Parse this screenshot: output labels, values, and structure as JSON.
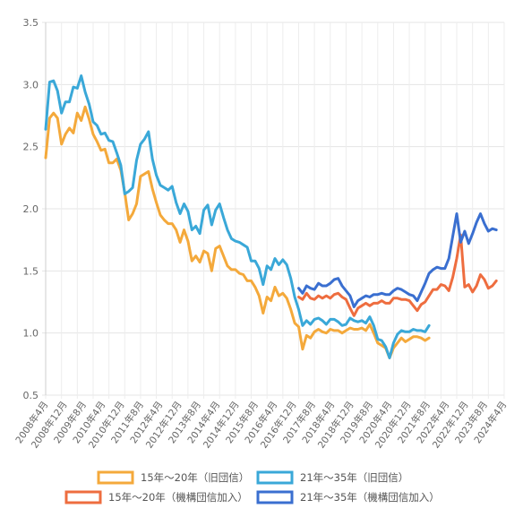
{
  "chart_data": {
    "type": "line",
    "x_start": "2008-04",
    "y_ticks": [
      "0.5",
      "1.0",
      "1.5",
      "2.0",
      "2.5",
      "3.0",
      "3.5"
    ],
    "ylim": [
      0.5,
      3.5
    ],
    "x_tick_labels": [
      "2008年4月",
      "2008年12月",
      "2009年8月",
      "2010年4月",
      "2010年12月",
      "2011年8月",
      "2012年4月",
      "2012年12月",
      "2013年8月",
      "2014年4月",
      "2014年12月",
      "2015年8月",
      "2016年4月",
      "2016年12月",
      "2017年8月",
      "2018年4月",
      "2018年12月",
      "2019年8月",
      "2020年4月",
      "2020年12月",
      "2021年8月",
      "2022年4月",
      "2022年12月",
      "2023年8月",
      "2024年4月"
    ],
    "grid": true,
    "legend_position": "bottom",
    "series": [
      {
        "name": "15年～20年（旧団信）",
        "color": "#f4a93b",
        "points": [
          [
            0,
            2.41
          ],
          [
            1,
            2.73
          ],
          [
            2,
            2.77
          ],
          [
            3,
            2.73
          ],
          [
            4,
            2.52
          ],
          [
            5,
            2.6
          ],
          [
            6,
            2.65
          ],
          [
            7,
            2.61
          ],
          [
            8,
            2.77
          ],
          [
            9,
            2.71
          ],
          [
            10,
            2.82
          ],
          [
            11,
            2.72
          ],
          [
            12,
            2.6
          ],
          [
            13,
            2.54
          ],
          [
            14,
            2.47
          ],
          [
            15,
            2.48
          ],
          [
            16,
            2.37
          ],
          [
            17,
            2.37
          ],
          [
            18,
            2.4
          ],
          [
            19,
            2.31
          ],
          [
            20,
            2.13
          ],
          [
            21,
            1.91
          ],
          [
            22,
            1.96
          ],
          [
            23,
            2.04
          ],
          [
            24,
            2.26
          ],
          [
            25,
            2.28
          ],
          [
            26,
            2.3
          ],
          [
            27,
            2.16
          ],
          [
            28,
            2.05
          ],
          [
            29,
            1.95
          ],
          [
            30,
            1.91
          ],
          [
            31,
            1.88
          ],
          [
            32,
            1.88
          ],
          [
            33,
            1.83
          ],
          [
            34,
            1.73
          ],
          [
            35,
            1.83
          ],
          [
            36,
            1.74
          ],
          [
            37,
            1.58
          ],
          [
            38,
            1.62
          ],
          [
            39,
            1.57
          ],
          [
            40,
            1.66
          ],
          [
            41,
            1.64
          ],
          [
            42,
            1.5
          ],
          [
            43,
            1.68
          ],
          [
            44,
            1.7
          ],
          [
            45,
            1.62
          ],
          [
            46,
            1.54
          ],
          [
            47,
            1.51
          ],
          [
            48,
            1.51
          ],
          [
            49,
            1.48
          ],
          [
            50,
            1.47
          ],
          [
            51,
            1.42
          ],
          [
            52,
            1.42
          ],
          [
            53,
            1.37
          ],
          [
            54,
            1.3
          ],
          [
            55,
            1.16
          ],
          [
            56,
            1.29
          ],
          [
            57,
            1.26
          ],
          [
            58,
            1.37
          ],
          [
            59,
            1.3
          ],
          [
            60,
            1.32
          ],
          [
            61,
            1.28
          ],
          [
            62,
            1.19
          ],
          [
            63,
            1.08
          ],
          [
            64,
            1.05
          ],
          [
            65,
            0.87
          ],
          [
            66,
            0.98
          ],
          [
            67,
            0.96
          ],
          [
            68,
            1.01
          ],
          [
            69,
            1.03
          ],
          [
            70,
            1.01
          ],
          [
            71,
            1.0
          ],
          [
            72,
            1.03
          ],
          [
            73,
            1.02
          ],
          [
            74,
            1.02
          ],
          [
            75,
            1.0
          ],
          [
            76,
            1.02
          ],
          [
            77,
            1.04
          ],
          [
            78,
            1.03
          ],
          [
            79,
            1.03
          ],
          [
            80,
            1.04
          ],
          [
            81,
            1.02
          ],
          [
            82,
            1.07
          ],
          [
            83,
            1.0
          ],
          [
            84,
            0.92
          ],
          [
            85,
            0.9
          ],
          [
            86,
            0.88
          ],
          [
            87,
            0.8
          ],
          [
            88,
            0.88
          ],
          [
            89,
            0.92
          ],
          [
            90,
            0.96
          ],
          [
            91,
            0.93
          ],
          [
            92,
            0.95
          ],
          [
            93,
            0.97
          ],
          [
            94,
            0.97
          ],
          [
            95,
            0.96
          ],
          [
            96,
            0.94
          ],
          [
            97,
            0.96
          ]
        ]
      },
      {
        "name": "21年～35年（旧団信）",
        "color": "#3aa8d8",
        "points": [
          [
            0,
            2.64
          ],
          [
            1,
            3.02
          ],
          [
            2,
            3.03
          ],
          [
            3,
            2.95
          ],
          [
            4,
            2.77
          ],
          [
            5,
            2.86
          ],
          [
            6,
            2.86
          ],
          [
            7,
            2.98
          ],
          [
            8,
            2.97
          ],
          [
            9,
            3.07
          ],
          [
            10,
            2.94
          ],
          [
            11,
            2.84
          ],
          [
            12,
            2.7
          ],
          [
            13,
            2.67
          ],
          [
            14,
            2.6
          ],
          [
            15,
            2.61
          ],
          [
            16,
            2.55
          ],
          [
            17,
            2.54
          ],
          [
            18,
            2.45
          ],
          [
            19,
            2.35
          ],
          [
            20,
            2.12
          ],
          [
            21,
            2.14
          ],
          [
            22,
            2.17
          ],
          [
            23,
            2.39
          ],
          [
            24,
            2.52
          ],
          [
            25,
            2.56
          ],
          [
            26,
            2.62
          ],
          [
            27,
            2.4
          ],
          [
            28,
            2.27
          ],
          [
            29,
            2.19
          ],
          [
            30,
            2.17
          ],
          [
            31,
            2.15
          ],
          [
            32,
            2.18
          ],
          [
            33,
            2.05
          ],
          [
            34,
            1.96
          ],
          [
            35,
            2.04
          ],
          [
            36,
            1.98
          ],
          [
            37,
            1.83
          ],
          [
            38,
            1.86
          ],
          [
            39,
            1.8
          ],
          [
            40,
            1.99
          ],
          [
            41,
            2.03
          ],
          [
            42,
            1.87
          ],
          [
            43,
            1.99
          ],
          [
            44,
            2.04
          ],
          [
            45,
            1.93
          ],
          [
            46,
            1.83
          ],
          [
            47,
            1.76
          ],
          [
            48,
            1.74
          ],
          [
            49,
            1.73
          ],
          [
            50,
            1.71
          ],
          [
            51,
            1.69
          ],
          [
            52,
            1.58
          ],
          [
            53,
            1.58
          ],
          [
            54,
            1.52
          ],
          [
            55,
            1.39
          ],
          [
            56,
            1.54
          ],
          [
            57,
            1.51
          ],
          [
            58,
            1.6
          ],
          [
            59,
            1.55
          ],
          [
            60,
            1.59
          ],
          [
            61,
            1.55
          ],
          [
            62,
            1.44
          ],
          [
            63,
            1.29
          ],
          [
            64,
            1.19
          ],
          [
            65,
            1.06
          ],
          [
            66,
            1.1
          ],
          [
            67,
            1.07
          ],
          [
            68,
            1.11
          ],
          [
            69,
            1.12
          ],
          [
            70,
            1.1
          ],
          [
            71,
            1.07
          ],
          [
            72,
            1.11
          ],
          [
            73,
            1.11
          ],
          [
            74,
            1.09
          ],
          [
            75,
            1.06
          ],
          [
            76,
            1.07
          ],
          [
            77,
            1.12
          ],
          [
            78,
            1.1
          ],
          [
            79,
            1.09
          ],
          [
            80,
            1.1
          ],
          [
            81,
            1.08
          ],
          [
            82,
            1.13
          ],
          [
            83,
            1.06
          ],
          [
            84,
            0.95
          ],
          [
            85,
            0.94
          ],
          [
            86,
            0.89
          ],
          [
            87,
            0.8
          ],
          [
            88,
            0.92
          ],
          [
            89,
            0.99
          ],
          [
            90,
            1.02
          ],
          [
            91,
            1.01
          ],
          [
            92,
            1.01
          ],
          [
            93,
            1.03
          ],
          [
            94,
            1.02
          ],
          [
            95,
            1.02
          ],
          [
            96,
            1.01
          ],
          [
            97,
            1.06
          ]
        ]
      },
      {
        "name": "15年～20年（機構団信加入）",
        "color": "#ee6d3f",
        "points": [
          [
            64,
            1.29
          ],
          [
            65,
            1.27
          ],
          [
            66,
            1.32
          ],
          [
            67,
            1.28
          ],
          [
            68,
            1.27
          ],
          [
            69,
            1.3
          ],
          [
            70,
            1.28
          ],
          [
            71,
            1.3
          ],
          [
            72,
            1.28
          ],
          [
            73,
            1.31
          ],
          [
            74,
            1.32
          ],
          [
            75,
            1.29
          ],
          [
            76,
            1.27
          ],
          [
            77,
            1.2
          ],
          [
            78,
            1.14
          ],
          [
            79,
            1.2
          ],
          [
            80,
            1.22
          ],
          [
            81,
            1.24
          ],
          [
            82,
            1.22
          ],
          [
            83,
            1.24
          ],
          [
            84,
            1.24
          ],
          [
            85,
            1.26
          ],
          [
            86,
            1.24
          ],
          [
            87,
            1.24
          ],
          [
            88,
            1.28
          ],
          [
            89,
            1.28
          ],
          [
            90,
            1.27
          ],
          [
            91,
            1.27
          ],
          [
            92,
            1.26
          ],
          [
            93,
            1.22
          ],
          [
            94,
            1.18
          ],
          [
            95,
            1.23
          ],
          [
            96,
            1.25
          ],
          [
            97,
            1.3
          ],
          [
            98,
            1.35
          ],
          [
            99,
            1.35
          ],
          [
            100,
            1.39
          ],
          [
            101,
            1.38
          ],
          [
            102,
            1.34
          ],
          [
            103,
            1.45
          ],
          [
            104,
            1.6
          ],
          [
            105,
            1.79
          ],
          [
            106,
            1.37
          ],
          [
            107,
            1.39
          ],
          [
            108,
            1.33
          ],
          [
            109,
            1.38
          ],
          [
            110,
            1.47
          ],
          [
            111,
            1.43
          ],
          [
            112,
            1.36
          ],
          [
            113,
            1.38
          ],
          [
            114,
            1.42
          ]
        ]
      },
      {
        "name": "21年～35年（機構団信加入）",
        "color": "#3a6fd0",
        "points": [
          [
            64,
            1.36
          ],
          [
            65,
            1.32
          ],
          [
            66,
            1.38
          ],
          [
            67,
            1.36
          ],
          [
            68,
            1.35
          ],
          [
            69,
            1.4
          ],
          [
            70,
            1.38
          ],
          [
            71,
            1.38
          ],
          [
            72,
            1.4
          ],
          [
            73,
            1.43
          ],
          [
            74,
            1.44
          ],
          [
            75,
            1.38
          ],
          [
            76,
            1.34
          ],
          [
            77,
            1.3
          ],
          [
            78,
            1.21
          ],
          [
            79,
            1.26
          ],
          [
            80,
            1.28
          ],
          [
            81,
            1.3
          ],
          [
            82,
            1.29
          ],
          [
            83,
            1.31
          ],
          [
            84,
            1.31
          ],
          [
            85,
            1.32
          ],
          [
            86,
            1.31
          ],
          [
            87,
            1.31
          ],
          [
            88,
            1.34
          ],
          [
            89,
            1.36
          ],
          [
            90,
            1.35
          ],
          [
            91,
            1.33
          ],
          [
            92,
            1.31
          ],
          [
            93,
            1.3
          ],
          [
            94,
            1.26
          ],
          [
            95,
            1.33
          ],
          [
            96,
            1.4
          ],
          [
            97,
            1.48
          ],
          [
            98,
            1.51
          ],
          [
            99,
            1.53
          ],
          [
            100,
            1.52
          ],
          [
            101,
            1.52
          ],
          [
            102,
            1.6
          ],
          [
            103,
            1.78
          ],
          [
            104,
            1.96
          ],
          [
            105,
            1.73
          ],
          [
            106,
            1.82
          ],
          [
            107,
            1.72
          ],
          [
            108,
            1.8
          ],
          [
            109,
            1.89
          ],
          [
            110,
            1.96
          ],
          [
            111,
            1.88
          ],
          [
            112,
            1.82
          ],
          [
            113,
            1.84
          ],
          [
            114,
            1.83
          ]
        ]
      }
    ]
  }
}
